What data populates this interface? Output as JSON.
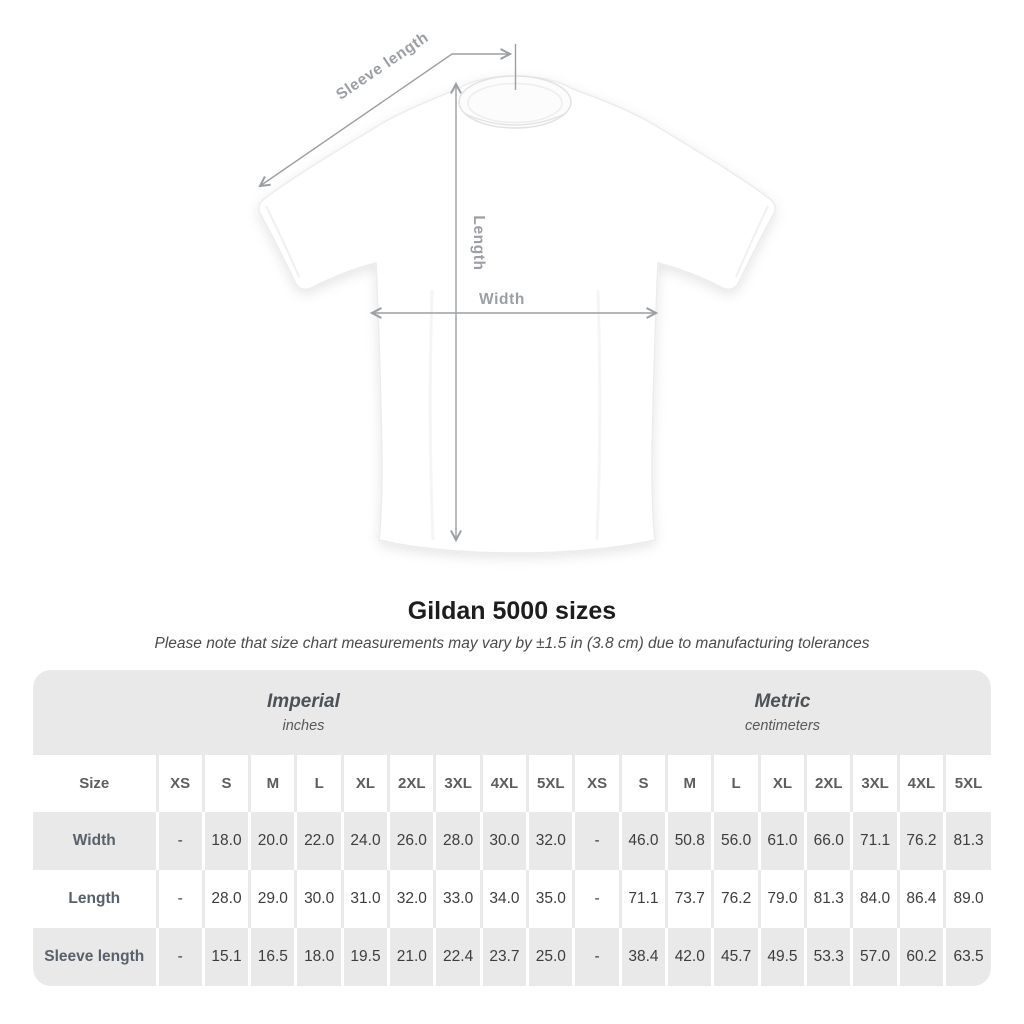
{
  "page": {
    "background": "#ffffff"
  },
  "diagram": {
    "annotation_color": "#9b9fa3",
    "labels": {
      "sleeve_length": "Sleeve length",
      "length": "Length",
      "width": "Width"
    }
  },
  "heading": {
    "title": "Gildan 5000 sizes",
    "subtitle": "Please note that size chart measurements may vary by ±1.5 in (3.8 cm) due to manufacturing tolerances"
  },
  "size_table": {
    "stripe_color": "#e9e9e9",
    "groups": [
      {
        "label": "Imperial",
        "unit": "inches"
      },
      {
        "label": "Metric",
        "unit": "centimeters"
      }
    ],
    "corner_label": "Size",
    "sizes": [
      "XS",
      "S",
      "M",
      "L",
      "XL",
      "2XL",
      "3XL",
      "4XL",
      "5XL"
    ],
    "rows": [
      {
        "label": "Width",
        "imperial": [
          "-",
          "18.0",
          "20.0",
          "22.0",
          "24.0",
          "26.0",
          "28.0",
          "30.0",
          "32.0"
        ],
        "metric": [
          "-",
          "46.0",
          "50.8",
          "56.0",
          "61.0",
          "66.0",
          "71.1",
          "76.2",
          "81.3"
        ]
      },
      {
        "label": "Length",
        "imperial": [
          "-",
          "28.0",
          "29.0",
          "30.0",
          "31.0",
          "32.0",
          "33.0",
          "34.0",
          "35.0"
        ],
        "metric": [
          "-",
          "71.1",
          "73.7",
          "76.2",
          "79.0",
          "81.3",
          "84.0",
          "86.4",
          "89.0"
        ]
      },
      {
        "label": "Sleeve length",
        "imperial": [
          "-",
          "15.1",
          "16.5",
          "18.0",
          "19.5",
          "21.0",
          "22.4",
          "23.7",
          "25.0"
        ],
        "metric": [
          "-",
          "38.4",
          "42.0",
          "45.7",
          "49.5",
          "53.3",
          "57.0",
          "60.2",
          "63.5"
        ]
      }
    ]
  }
}
